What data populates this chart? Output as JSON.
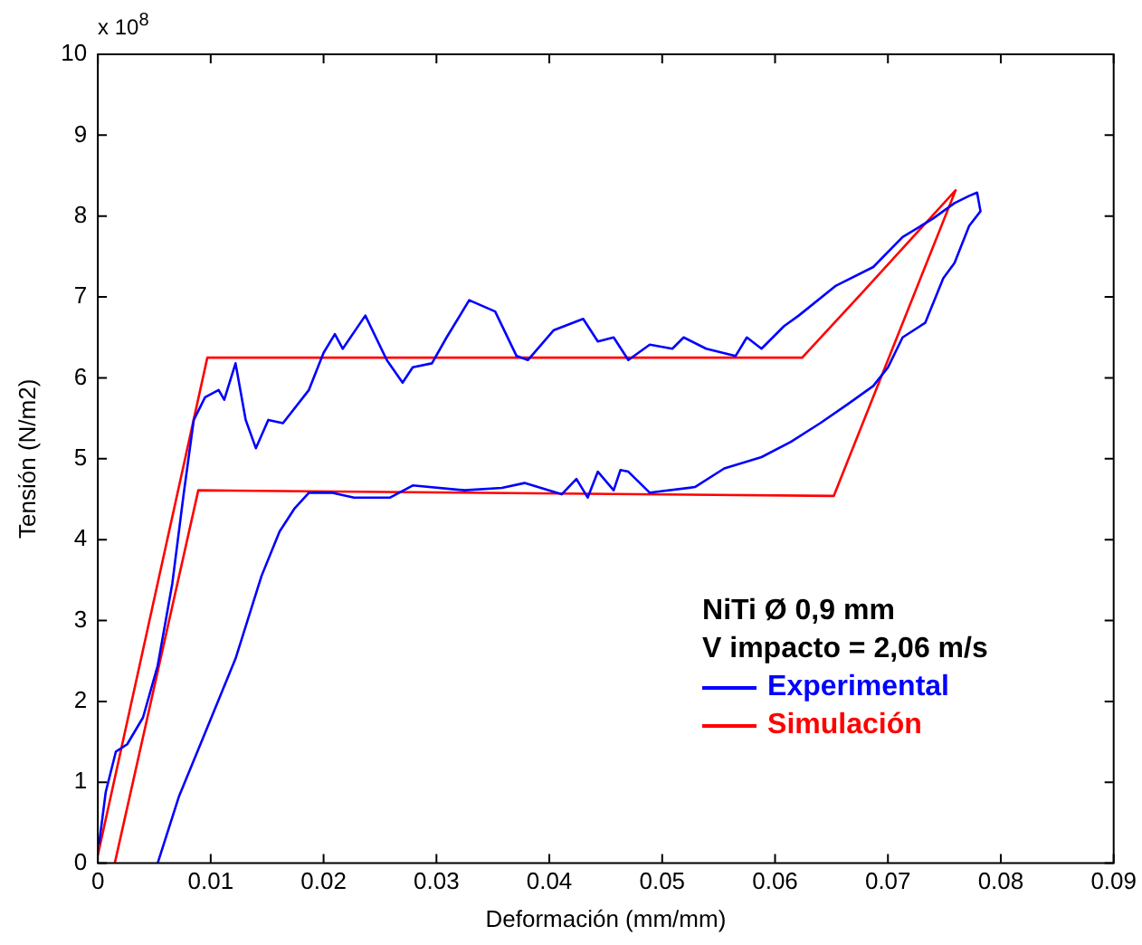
{
  "chart_data": {
    "type": "line",
    "xlabel": "Deformación (mm/mm)",
    "ylabel": "Tensión (N/m2)",
    "xlim": [
      0,
      0.09
    ],
    "xticks": [
      0,
      0.01,
      0.02,
      0.03,
      0.04,
      0.05,
      0.06,
      0.07,
      0.08,
      0.09
    ],
    "ylim": [
      0,
      10
    ],
    "yticks": [
      0,
      1,
      2,
      3,
      4,
      5,
      6,
      7,
      8,
      9,
      10
    ],
    "grid": false,
    "legend": "bottom right",
    "marker": "none",
    "line_style": "solid",
    "annotations": [
      "x 10$^{8}$",
      "NiTi  Ø 0,9 mm",
      "V impacto = 2,06 m/s"
    ],
    "series": [
      {
        "name": "Experimental",
        "color": "#0000ff",
        "x": [
          0.0001,
          0.0007,
          0.0016,
          0.0026,
          0.004,
          0.0053,
          0.0066,
          0.0076,
          0.0085,
          0.0095,
          0.0107,
          0.0112,
          0.0122,
          0.0131,
          0.014,
          0.0151,
          0.0164,
          0.0187,
          0.02,
          0.021,
          0.0217,
          0.0237,
          0.0256,
          0.027,
          0.0279,
          0.0296,
          0.0309,
          0.0329,
          0.0352,
          0.0371,
          0.0381,
          0.0404,
          0.043,
          0.0443,
          0.0457,
          0.047,
          0.0489,
          0.0509,
          0.0519,
          0.0539,
          0.0565,
          0.0575,
          0.0588,
          0.0608,
          0.0621,
          0.0654,
          0.0687,
          0.0713,
          0.074,
          0.0759,
          0.0772,
          0.0779,
          0.0782,
          0.0772,
          0.0759,
          0.0749,
          0.0733,
          0.0713,
          0.07,
          0.0687,
          0.0664,
          0.064,
          0.0614,
          0.0588,
          0.0555,
          0.0529,
          0.0489,
          0.047,
          0.0463,
          0.0457,
          0.0443,
          0.0434,
          0.0424,
          0.0411,
          0.0378,
          0.0358,
          0.0325,
          0.0279,
          0.0259,
          0.0227,
          0.0207,
          0.0187,
          0.0174,
          0.0161,
          0.0145,
          0.0122,
          0.0095,
          0.0072,
          0.0053
        ],
        "values": [
          0.23,
          0.88,
          1.38,
          1.47,
          1.8,
          2.44,
          3.46,
          4.56,
          5.48,
          5.76,
          5.85,
          5.73,
          6.18,
          5.48,
          5.13,
          5.48,
          5.44,
          5.85,
          6.31,
          6.54,
          6.36,
          6.77,
          6.22,
          5.94,
          6.13,
          6.18,
          6.5,
          6.96,
          6.82,
          6.27,
          6.22,
          6.59,
          6.73,
          6.45,
          6.5,
          6.22,
          6.41,
          6.36,
          6.5,
          6.36,
          6.27,
          6.5,
          6.36,
          6.64,
          6.77,
          7.14,
          7.37,
          7.74,
          7.97,
          8.16,
          8.25,
          8.29,
          8.06,
          7.88,
          7.42,
          7.23,
          6.68,
          6.5,
          6.13,
          5.9,
          5.67,
          5.44,
          5.21,
          5.02,
          4.88,
          4.65,
          4.58,
          4.84,
          4.86,
          4.61,
          4.84,
          4.52,
          4.75,
          4.56,
          4.7,
          4.64,
          4.61,
          4.67,
          4.52,
          4.52,
          4.58,
          4.58,
          4.38,
          4.1,
          3.55,
          2.53,
          1.61,
          0.83,
          0
        ]
      },
      {
        "name": "Simulación",
        "color": "#ff0000",
        "x": [
          0,
          0.0097,
          0.0624,
          0.0677,
          0.076,
          0.0652,
          0.0089,
          0.0015
        ],
        "values": [
          0.1,
          6.25,
          6.25,
          7.05,
          8.32,
          4.54,
          4.61,
          0
        ]
      }
    ]
  }
}
